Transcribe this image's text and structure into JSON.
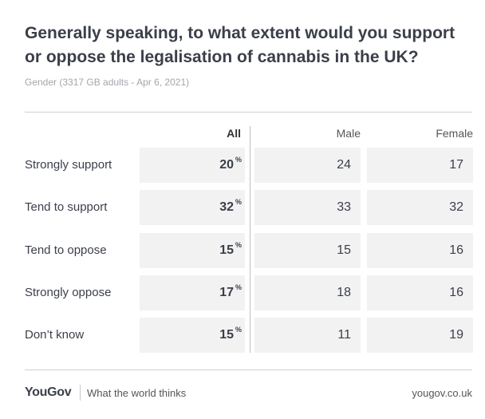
{
  "title": "Generally speaking, to what extent would you support or oppose the legalisation of cannabis in the UK?",
  "subtitle": "Gender (3317 GB adults - Apr 6, 2021)",
  "chart_data": {
    "type": "table",
    "columns": [
      "All",
      "Male",
      "Female"
    ],
    "rows": [
      {
        "label": "Strongly support",
        "values": [
          20,
          24,
          17
        ]
      },
      {
        "label": "Tend to support",
        "values": [
          32,
          33,
          32
        ]
      },
      {
        "label": "Tend to oppose",
        "values": [
          15,
          15,
          16
        ]
      },
      {
        "label": "Strongly oppose",
        "values": [
          17,
          18,
          16
        ]
      },
      {
        "label": "Don’t know",
        "values": [
          15,
          11,
          19
        ]
      }
    ],
    "unit": "%"
  },
  "footer": {
    "logo": "YouGov",
    "tagline": "What the world thinks",
    "url": "yougov.co.uk"
  },
  "colors": {
    "cell_background": "#f2f2f3",
    "text": "#3b3f4a",
    "subtitle": "#a4a6ab"
  }
}
